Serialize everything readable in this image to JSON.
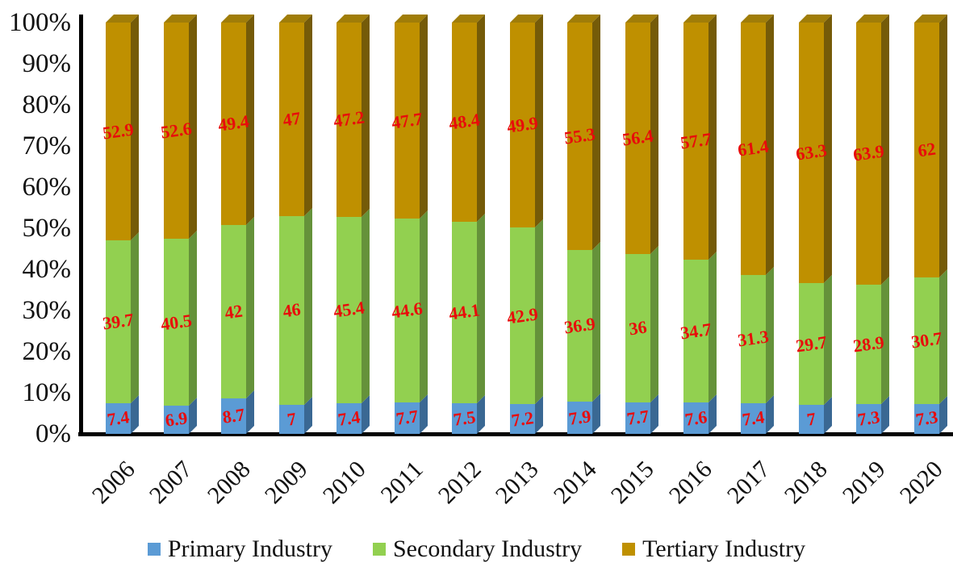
{
  "chart_data": {
    "type": "bar",
    "stacked": true,
    "percent_stacked": true,
    "title": "",
    "xlabel": "",
    "ylabel": "",
    "categories": [
      "2006",
      "2007",
      "2008",
      "2009",
      "2010",
      "2011",
      "2012",
      "2013",
      "2014",
      "2015",
      "2016",
      "2017",
      "2018",
      "2019",
      "2020"
    ],
    "series": [
      {
        "name": "Primary Industry",
        "color": "#5B9BD5",
        "side_color": "#3A6893",
        "values": [
          7.4,
          6.9,
          8.7,
          7,
          7.4,
          7.7,
          7.5,
          7.2,
          7.9,
          7.7,
          7.6,
          7.4,
          7,
          7.3,
          7.3
        ]
      },
      {
        "name": "Secondary Industry",
        "color": "#92D050",
        "side_color": "#65923A",
        "values": [
          39.7,
          40.5,
          42,
          46,
          45.4,
          44.6,
          44.1,
          42.9,
          36.9,
          36,
          34.7,
          31.3,
          29.7,
          28.9,
          30.7
        ]
      },
      {
        "name": "Tertiary Industry",
        "color": "#BF9000",
        "side_color": "#755B08",
        "top_color": "#A07D08",
        "values": [
          52.9,
          52.6,
          49.4,
          47,
          47.2,
          47.7,
          48.4,
          49.9,
          55.3,
          56.4,
          57.7,
          61.4,
          63.3,
          63.9,
          62
        ]
      }
    ],
    "y_ticks": [
      "0%",
      "10%",
      "20%",
      "30%",
      "40%",
      "50%",
      "60%",
      "70%",
      "80%",
      "90%",
      "100%"
    ],
    "ylim": [
      0,
      100
    ],
    "grid": false,
    "legend_position": "bottom",
    "data_label_color": "#E80B0B",
    "axis_color": "#000000"
  }
}
